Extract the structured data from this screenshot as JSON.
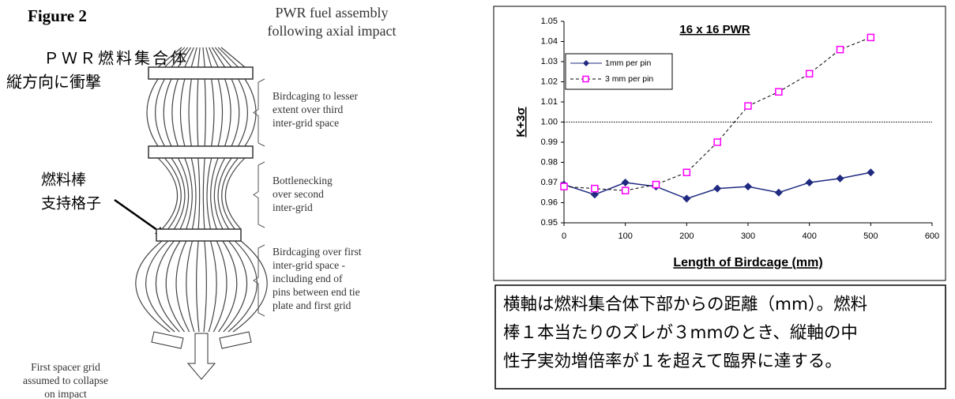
{
  "figure": {
    "label": "Figure 2",
    "title_lines": [
      "PWR fuel assembly",
      "following axial impact"
    ],
    "jp_title_lines": [
      "ＰＷＲ燃料集合体",
      "縦方向に衝撃"
    ],
    "jp_pointer_lines": [
      "燃料棒",
      "支持格子"
    ],
    "notes": [
      {
        "lines": [
          "Birdcaging to lesser",
          "extent over third",
          "inter-grid space"
        ]
      },
      {
        "lines": [
          "Bottlenecking",
          "over second",
          "inter-grid"
        ]
      },
      {
        "lines": [
          "Birdcaging over first",
          "inter-grid space -",
          "including  end of",
          "pins between end tie",
          "plate and first grid"
        ]
      },
      {
        "lines": [
          "First spacer grid",
          "assumed to collapse",
          "on impact"
        ]
      }
    ]
  },
  "chart_data": {
    "type": "line",
    "title": "16 x 16 PWR",
    "x_label": "Length of Birdcage (mm)",
    "y_label": "K+3σ",
    "x": [
      0,
      50,
      100,
      150,
      200,
      250,
      300,
      350,
      400,
      450,
      500
    ],
    "series": [
      {
        "name": "1mm per pin",
        "color": "#1f2a80",
        "marker": "diamond",
        "dash": false,
        "values": [
          0.969,
          0.964,
          0.97,
          0.968,
          0.962,
          0.967,
          0.968,
          0.965,
          0.97,
          0.972,
          0.975
        ]
      },
      {
        "name": "3 mm per pin",
        "color": "#ff00ff",
        "marker": "square",
        "dash": true,
        "values": [
          0.968,
          0.967,
          0.966,
          0.969,
          0.975,
          0.99,
          1.008,
          1.015,
          1.024,
          1.036,
          1.042
        ]
      }
    ],
    "xlim": [
      0,
      600
    ],
    "xticks": [
      0,
      100,
      200,
      300,
      400,
      500,
      600
    ],
    "ylim": [
      0.95,
      1.05
    ],
    "yticks": [
      0.95,
      0.96,
      0.97,
      0.98,
      0.99,
      {
        "value": 1,
        "label": "1.00"
      },
      1.01,
      1.02,
      1.03,
      1.04,
      1.05
    ],
    "reference_line": 1,
    "legend": "top-left"
  },
  "caption": {
    "lines": [
      "横軸は燃料集合体下部からの距離（mm）。燃料",
      "棒１本当たりのズレが３mmのとき、縦軸の中",
      "性子実効増倍率が１を超えて臨界に達する。"
    ]
  }
}
